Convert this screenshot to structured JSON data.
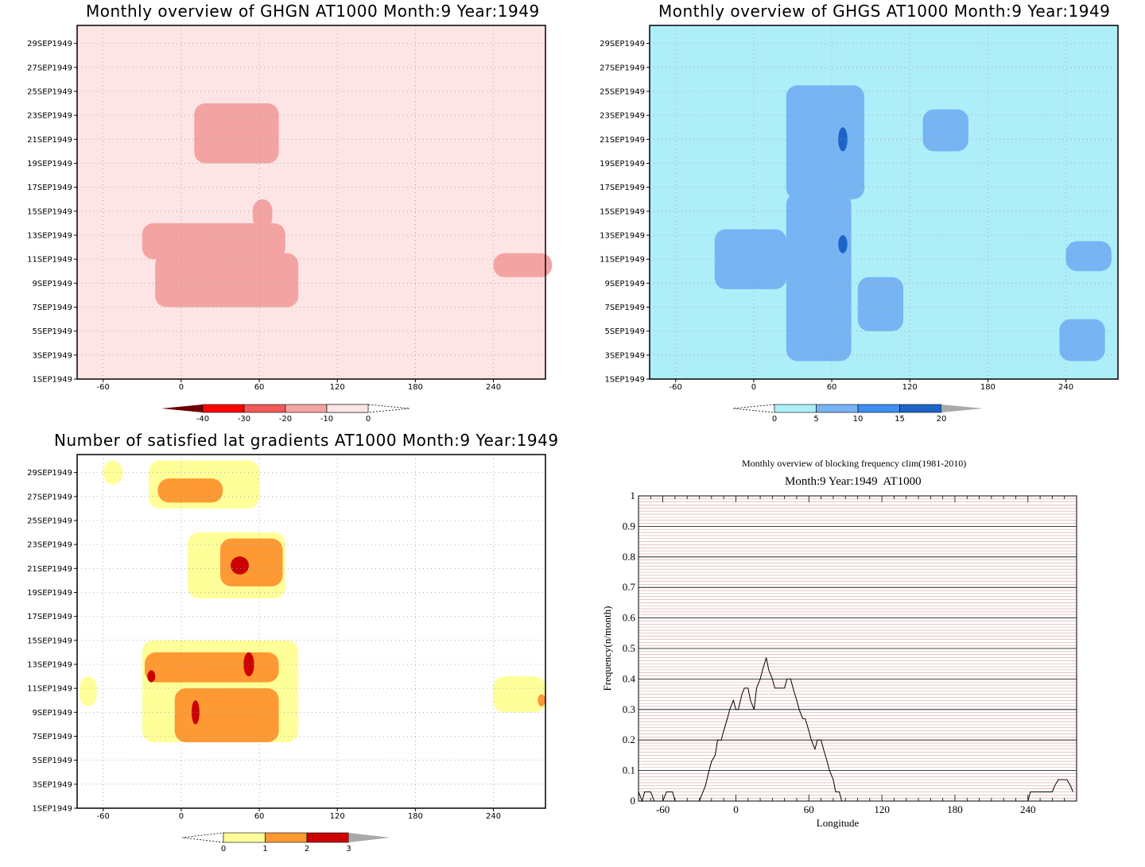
{
  "chart_data": [
    {
      "id": "ghgn",
      "type": "heatmap",
      "title": "Monthly overview of GHGN AT1000 Month:9 Year:1949",
      "x_ticks": [
        "-60",
        "0",
        "60",
        "120",
        "180",
        "240"
      ],
      "y_ticks": [
        "1SEP1949",
        "3SEP1949",
        "5SEP1949",
        "7SEP1949",
        "9SEP1949",
        "11SEP1949",
        "13SEP1949",
        "15SEP1949",
        "17SEP1949",
        "19SEP1949",
        "21SEP1949",
        "23SEP1949",
        "25SEP1949",
        "27SEP1949",
        "29SEP1949"
      ],
      "xlim": [
        -80,
        280
      ],
      "colorbar": {
        "labels": [
          "-40",
          "-30",
          "-20",
          "-10",
          "0"
        ],
        "colors": [
          "#6b0000",
          "#ff0000",
          "#f25a5a",
          "#f4a3a3",
          "#fde5e5"
        ]
      },
      "regions": [
        {
          "level": "-20..-10",
          "lon": [
            55,
            70
          ],
          "day": [
            13.5,
            16.0
          ]
        },
        {
          "level": "-20..-10",
          "lon": [
            10,
            75
          ],
          "day": [
            19.0,
            24.0
          ]
        },
        {
          "level": "-20..-10",
          "lon": [
            -30,
            80
          ],
          "day": [
            11.0,
            14.0
          ]
        },
        {
          "level": "-20..-10",
          "lon": [
            -20,
            90
          ],
          "day": [
            7.0,
            11.5
          ]
        },
        {
          "level": "-20..-10",
          "lon": [
            240,
            285
          ],
          "day": [
            9.5,
            11.5
          ]
        }
      ]
    },
    {
      "id": "ghgs",
      "type": "heatmap",
      "title": "Monthly overview of GHGS AT1000 Month:9 Year:1949",
      "x_ticks": [
        "-60",
        "0",
        "60",
        "120",
        "180",
        "240"
      ],
      "y_ticks": [
        "1SEP1949",
        "3SEP1949",
        "5SEP1949",
        "7SEP1949",
        "9SEP1949",
        "11SEP1949",
        "13SEP1949",
        "15SEP1949",
        "17SEP1949",
        "19SEP1949",
        "21SEP1949",
        "23SEP1949",
        "25SEP1949",
        "27SEP1949",
        "29SEP1949"
      ],
      "xlim": [
        -80,
        280
      ],
      "colorbar": {
        "labels": [
          "0",
          "5",
          "10",
          "15",
          "20"
        ],
        "colors": [
          "#aeeef8",
          "#76b4f3",
          "#3c8ef0",
          "#1e64c8",
          "#a9a9a9"
        ]
      },
      "regions": [
        {
          "level": "5..10",
          "lon": [
            25,
            85
          ],
          "day": [
            16.0,
            25.5
          ]
        },
        {
          "level": "5..10",
          "lon": [
            25,
            75
          ],
          "day": [
            2.5,
            16.5
          ]
        },
        {
          "level": "5..10",
          "lon": [
            -30,
            25
          ],
          "day": [
            8.5,
            13.5
          ]
        },
        {
          "level": "5..10",
          "lon": [
            80,
            115
          ],
          "day": [
            5.0,
            9.5
          ]
        },
        {
          "level": "5..10",
          "lon": [
            130,
            165
          ],
          "day": [
            20.0,
            23.5
          ]
        },
        {
          "level": "10..15",
          "lon": [
            65,
            72
          ],
          "day": [
            20.0,
            22.0
          ]
        },
        {
          "level": "10..15",
          "lon": [
            65,
            72
          ],
          "day": [
            11.5,
            13.0
          ]
        },
        {
          "level": "5..10",
          "lon": [
            235,
            270
          ],
          "day": [
            2.5,
            6.0
          ]
        },
        {
          "level": "5..10",
          "lon": [
            240,
            275
          ],
          "day": [
            10.0,
            12.5
          ]
        }
      ]
    },
    {
      "id": "lat-gradients",
      "type": "heatmap",
      "title": "Number of satisfied lat gradients AT1000 Month:9 Year:1949",
      "x_ticks": [
        "-60",
        "0",
        "60",
        "120",
        "180",
        "240"
      ],
      "y_ticks": [
        "1SEP1949",
        "3SEP1949",
        "5SEP1949",
        "7SEP1949",
        "9SEP1949",
        "11SEP1949",
        "13SEP1949",
        "15SEP1949",
        "17SEP1949",
        "19SEP1949",
        "21SEP1949",
        "23SEP1949",
        "25SEP1949",
        "27SEP1949",
        "29SEP1949"
      ],
      "xlim": [
        -80,
        280
      ],
      "colorbar": {
        "labels": [
          "0",
          "1",
          "2",
          "3"
        ],
        "colors": [
          "#ffff99",
          "#ff9933",
          "#cc0000",
          "#a9a9a9"
        ]
      },
      "regions": [
        {
          "level": "1",
          "lon": [
            -60,
            -45
          ],
          "day": [
            28.0,
            30.0
          ]
        },
        {
          "level": "1",
          "lon": [
            -25,
            60
          ],
          "day": [
            26.0,
            30.0
          ]
        },
        {
          "level": "2",
          "lon": [
            -18,
            32
          ],
          "day": [
            26.5,
            28.5
          ]
        },
        {
          "level": "1",
          "lon": [
            5,
            80
          ],
          "day": [
            18.5,
            24.0
          ]
        },
        {
          "level": "2",
          "lon": [
            30,
            78
          ],
          "day": [
            19.5,
            23.5
          ]
        },
        {
          "level": "3",
          "lon": [
            38,
            52
          ],
          "day": [
            20.5,
            22.0
          ]
        },
        {
          "level": "1",
          "lon": [
            -30,
            90
          ],
          "day": [
            6.5,
            15.0
          ]
        },
        {
          "level": "2",
          "lon": [
            -28,
            75
          ],
          "day": [
            11.5,
            14.0
          ]
        },
        {
          "level": "2",
          "lon": [
            -5,
            75
          ],
          "day": [
            6.5,
            11.0
          ]
        },
        {
          "level": "3",
          "lon": [
            8,
            14
          ],
          "day": [
            8.0,
            10.0
          ]
        },
        {
          "level": "3",
          "lon": [
            48,
            56
          ],
          "day": [
            12.0,
            14.0
          ]
        },
        {
          "level": "3",
          "lon": [
            -26,
            -20
          ],
          "day": [
            11.5,
            12.5
          ]
        },
        {
          "level": "1",
          "lon": [
            -78,
            -65
          ],
          "day": [
            9.5,
            12.0
          ]
        },
        {
          "level": "1",
          "lon": [
            240,
            280
          ],
          "day": [
            9.0,
            12.0
          ]
        },
        {
          "level": "2",
          "lon": [
            274,
            280
          ],
          "day": [
            9.5,
            10.5
          ]
        }
      ]
    },
    {
      "id": "blocking-frequency",
      "type": "line",
      "title": "Monthly overview of blocking frequency clim(1981-2010)",
      "subtitle": "Month:9 Year:1949  AT1000",
      "xlabel": "Longitude",
      "ylabel": "Frequency(n/month)",
      "x_ticks": [
        "-60",
        "0",
        "60",
        "120",
        "180",
        "240"
      ],
      "y_ticks": [
        "0",
        "0.1",
        "0.2",
        "0.3",
        "0.4",
        "0.5",
        "0.6",
        "0.7",
        "0.8",
        "0.9",
        "1"
      ],
      "xlim": [
        -80,
        280
      ],
      "ylim": [
        0,
        1
      ],
      "series": [
        {
          "x": [
            -80,
            -77,
            -75,
            -72,
            -70,
            -67,
            -65,
            -62,
            -60,
            -57,
            -55,
            -52,
            -50,
            -47,
            -45,
            -42,
            -40,
            -37,
            -35,
            -32,
            -30,
            -27,
            -25,
            -22,
            -20,
            -17,
            -15,
            -12,
            -10,
            -7,
            -5,
            -2,
            0,
            2,
            5,
            7,
            10,
            12,
            15,
            17,
            20,
            22,
            25,
            27,
            30,
            32,
            35,
            37,
            40,
            42,
            45,
            47,
            50,
            52,
            55,
            57,
            60,
            62,
            65,
            67,
            70,
            72,
            75,
            77,
            80,
            82,
            85,
            87,
            90,
            92,
            95,
            240,
            242,
            245,
            247,
            250,
            252,
            255,
            257,
            260,
            262,
            265,
            267,
            270,
            272,
            275,
            277
          ],
          "y": [
            0.03,
            0,
            0.03,
            0.03,
            0.03,
            0,
            0,
            0,
            0,
            0.03,
            0.03,
            0.03,
            0,
            0,
            0,
            0,
            0,
            0,
            0,
            0,
            0,
            0.03,
            0.05,
            0.1,
            0.13,
            0.15,
            0.2,
            0.2,
            0.23,
            0.27,
            0.3,
            0.33,
            0.3,
            0.3,
            0.35,
            0.37,
            0.37,
            0.33,
            0.3,
            0.37,
            0.4,
            0.43,
            0.47,
            0.43,
            0.4,
            0.37,
            0.37,
            0.37,
            0.37,
            0.4,
            0.4,
            0.37,
            0.33,
            0.3,
            0.27,
            0.27,
            0.23,
            0.2,
            0.17,
            0.2,
            0.2,
            0.17,
            0.13,
            0.1,
            0.07,
            0.03,
            0.03,
            0,
            0,
            0,
            0,
            0,
            0.03,
            0.03,
            0.03,
            0.03,
            0.03,
            0.03,
            0.03,
            0.03,
            0.05,
            0.07,
            0.07,
            0.07,
            0.07,
            0.05,
            0.03
          ]
        }
      ]
    }
  ]
}
